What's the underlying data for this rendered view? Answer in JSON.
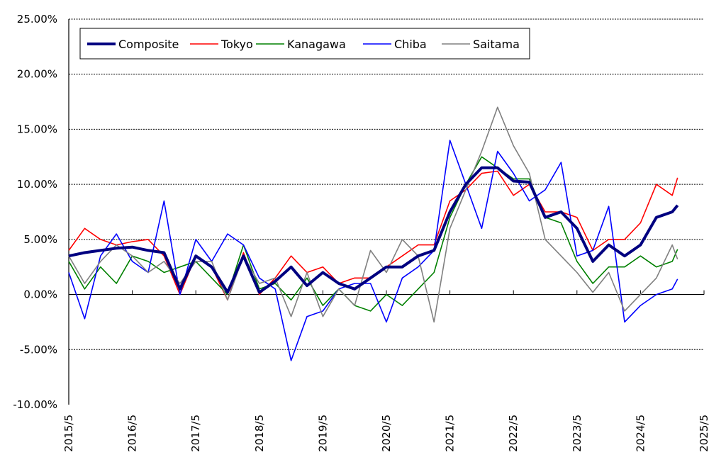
{
  "chart_data": {
    "type": "line",
    "title": "",
    "xlabel": "",
    "ylabel": "",
    "ylim": [
      -10,
      25
    ],
    "y_ticks": [
      "25.00%",
      "20.00%",
      "15.00%",
      "10.00%",
      "5.00%",
      "0.00%",
      "-5.00%",
      "-10.00%"
    ],
    "y_tick_values": [
      25,
      20,
      15,
      10,
      5,
      0,
      -5,
      -10
    ],
    "x_ticks": [
      "2015/5",
      "2016/5",
      "2017/5",
      "2018/5",
      "2019/5",
      "2020/5",
      "2021/5",
      "2022/5",
      "2023/5",
      "2024/5",
      "2025/5"
    ],
    "grid": "horizontal dashed",
    "legend": "top-left",
    "x": [
      "2015/5",
      "2015/8",
      "2015/11",
      "2016/2",
      "2016/5",
      "2016/8",
      "2016/11",
      "2017/2",
      "2017/5",
      "2017/8",
      "2017/11",
      "2018/2",
      "2018/5",
      "2018/8",
      "2018/11",
      "2019/2",
      "2019/5",
      "2019/8",
      "2019/11",
      "2020/2",
      "2020/5",
      "2020/8",
      "2020/11",
      "2021/2",
      "2021/5",
      "2021/8",
      "2021/11",
      "2022/2",
      "2022/5",
      "2022/8",
      "2022/11",
      "2023/2",
      "2023/5",
      "2023/8",
      "2023/11",
      "2024/2",
      "2024/5",
      "2024/8",
      "2024/11",
      "2024/12"
    ],
    "series": [
      {
        "name": "Composite",
        "color": "#000080",
        "values": [
          3.5,
          3.8,
          4.0,
          4.2,
          4.3,
          4.0,
          3.8,
          0.5,
          3.5,
          2.5,
          0.2,
          3.5,
          0.2,
          1.2,
          2.5,
          0.8,
          2.0,
          1.0,
          0.5,
          1.5,
          2.5,
          2.5,
          3.5,
          4.0,
          7.5,
          10.0,
          11.5,
          11.5,
          10.3,
          10.2,
          7.0,
          7.5,
          6.0,
          3.0,
          4.5,
          3.5,
          4.5,
          7.0,
          7.5,
          8.1
        ]
      },
      {
        "name": "Tokyo",
        "color": "#ff0000",
        "values": [
          4.0,
          6.0,
          5.0,
          4.5,
          4.8,
          5.0,
          3.5,
          0.0,
          3.5,
          2.5,
          -0.5,
          3.8,
          0.0,
          1.5,
          3.5,
          2.0,
          2.5,
          1.0,
          1.5,
          1.5,
          2.5,
          3.5,
          4.5,
          4.5,
          8.5,
          9.5,
          11.0,
          11.2,
          9.0,
          10.0,
          7.5,
          7.5,
          7.0,
          4.0,
          5.0,
          5.0,
          6.5,
          10.0,
          9.0,
          10.6
        ]
      },
      {
        "name": "Kanagawa",
        "color": "#008000",
        "values": [
          3.0,
          0.5,
          2.5,
          1.0,
          3.5,
          3.0,
          2.0,
          2.5,
          3.0,
          1.5,
          0.0,
          4.5,
          0.5,
          1.0,
          -0.5,
          1.5,
          -1.0,
          0.5,
          -1.0,
          -1.5,
          0.0,
          -1.0,
          0.5,
          2.0,
          7.0,
          10.0,
          12.5,
          11.5,
          10.5,
          10.5,
          7.0,
          6.5,
          3.0,
          1.0,
          2.5,
          2.5,
          3.5,
          2.5,
          3.0,
          4.1
        ]
      },
      {
        "name": "Chiba",
        "color": "#0000ff",
        "values": [
          2.0,
          -2.2,
          3.5,
          5.5,
          3.0,
          2.0,
          8.5,
          0.0,
          5.0,
          3.0,
          5.5,
          4.5,
          1.5,
          0.5,
          -6.0,
          -2.0,
          -1.5,
          0.5,
          1.0,
          1.0,
          -2.5,
          1.5,
          2.5,
          4.0,
          14.0,
          10.0,
          6.0,
          13.0,
          11.0,
          8.5,
          9.5,
          12.0,
          3.5,
          4.0,
          8.0,
          -2.5,
          -1.0,
          0.0,
          0.5,
          1.4
        ]
      },
      {
        "name": "Saitama",
        "color": "#808080",
        "values": [
          3.5,
          1.0,
          3.0,
          4.5,
          3.5,
          2.0,
          3.0,
          1.0,
          3.0,
          3.0,
          -0.5,
          3.5,
          1.0,
          1.5,
          -2.0,
          2.0,
          -2.0,
          0.5,
          -1.0,
          4.0,
          2.0,
          5.0,
          3.5,
          -2.5,
          6.0,
          9.5,
          13.0,
          17.0,
          13.5,
          11.0,
          5.0,
          3.5,
          2.0,
          0.2,
          2.0,
          -1.5,
          0.0,
          1.5,
          4.5,
          3.2
        ]
      }
    ]
  }
}
